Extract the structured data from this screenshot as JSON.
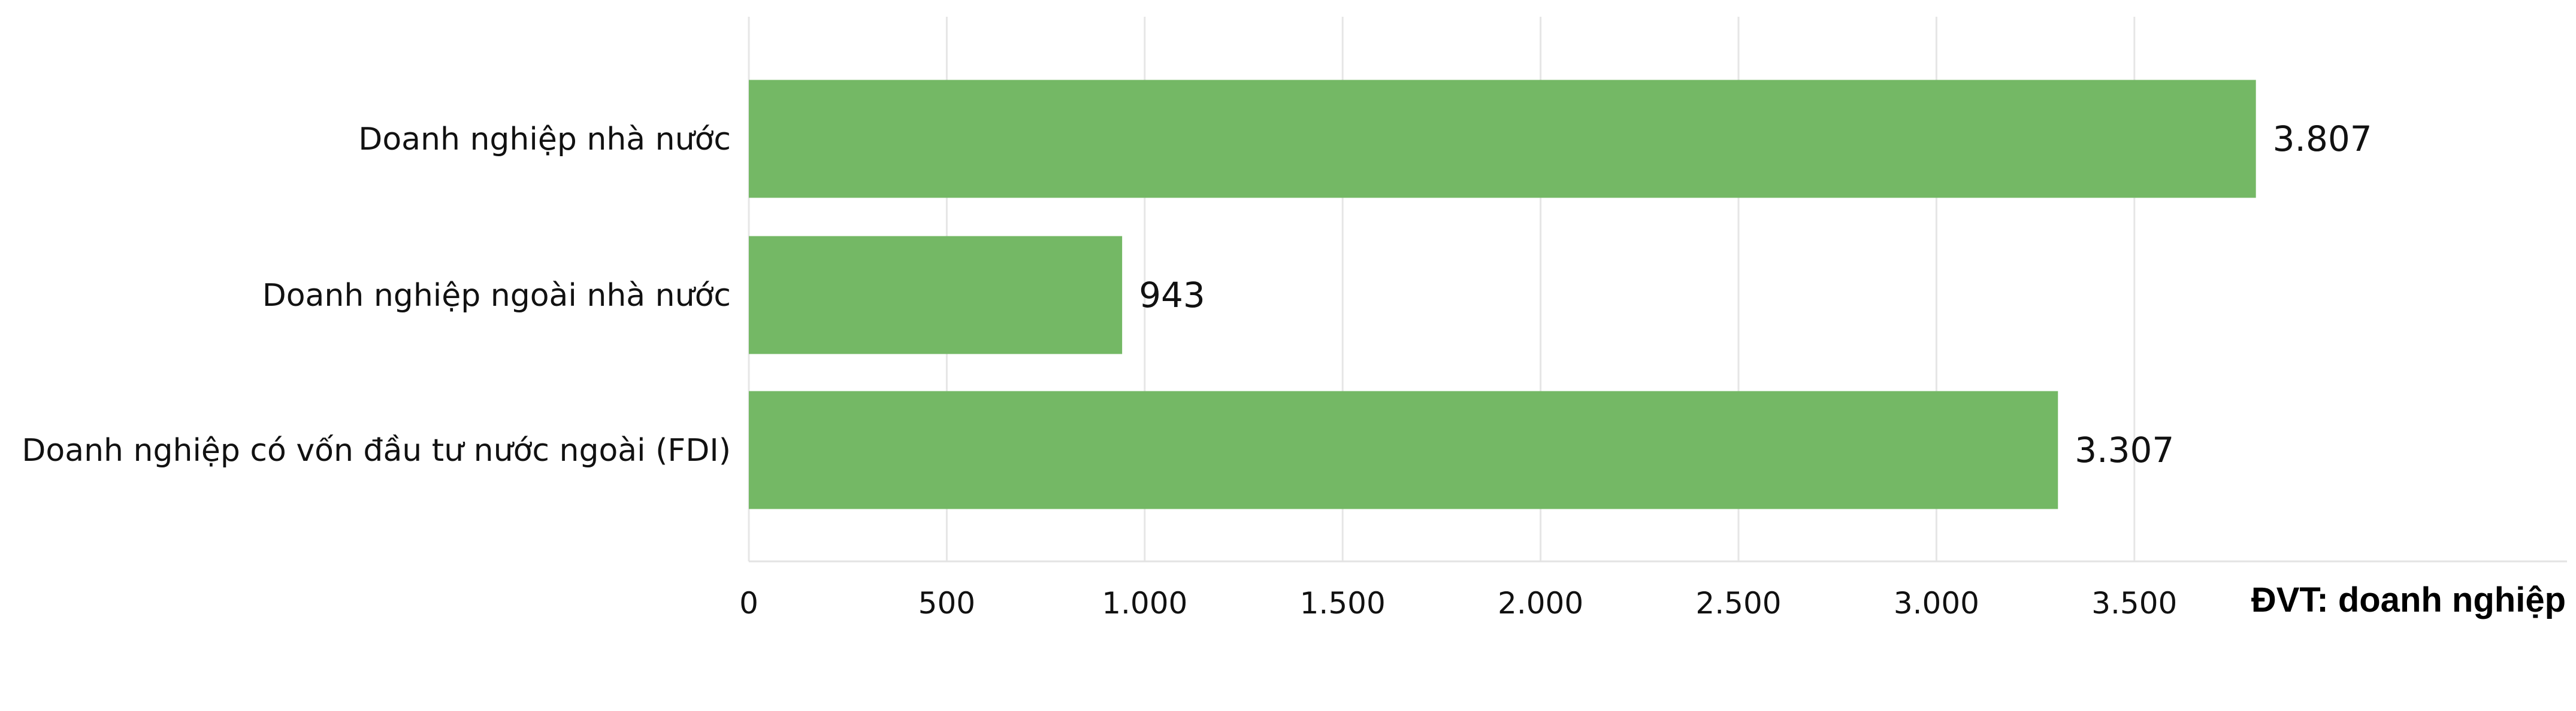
{
  "chart_data": {
    "type": "bar",
    "orientation": "horizontal",
    "categories": [
      "Doanh nghiệp nhà nước",
      "Doanh nghiệp ngoài nhà nước",
      "Doanh nghiệp có vốn đầu tư nước ngoài (FDI)"
    ],
    "values": [
      3807,
      943,
      3307
    ],
    "value_labels": [
      "3.807",
      "943",
      "3.307"
    ],
    "xlim": [
      0,
      4000
    ],
    "x_ticks": [
      0,
      500,
      1000,
      1500,
      2000,
      2500,
      3000,
      3500
    ],
    "x_tick_labels": [
      "0",
      "500",
      "1.000",
      "1.500",
      "2.000",
      "2.500",
      "3.000",
      "3.500"
    ],
    "grid": true,
    "legend": "none",
    "unit_label": "ĐVT: doanh nghiệp",
    "bar_color": "#74b865",
    "grid_color": "#e6e6e6"
  }
}
